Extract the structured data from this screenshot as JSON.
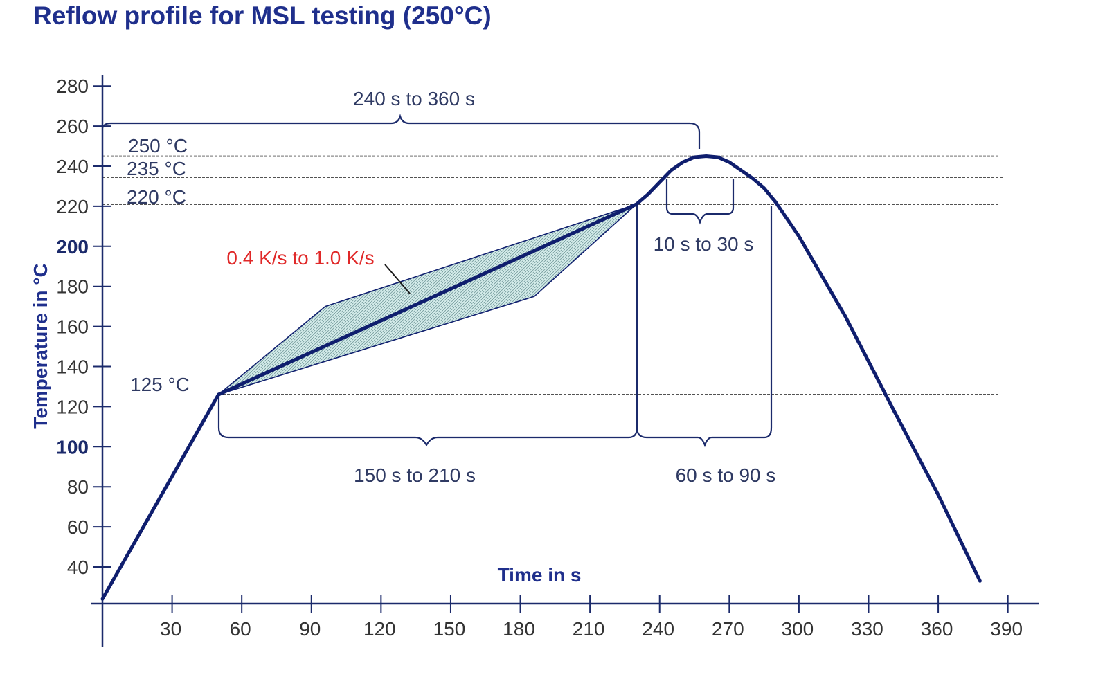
{
  "title": "Reflow profile for MSL testing (250°C)",
  "colors": {
    "curve": "#0f1e6e",
    "axis": "#1b2a6b",
    "title": "#1f2f8c",
    "shade_fill": "#bfe3df",
    "annotation_red": "#e02828"
  },
  "chart_data": {
    "type": "line",
    "title": "Reflow profile for MSL testing (250°C)",
    "xlabel": "Time in s",
    "ylabel": "Temperature in °C",
    "xlim": [
      0,
      390
    ],
    "ylim": [
      20,
      280
    ],
    "x_ticks": [
      30,
      60,
      90,
      120,
      150,
      180,
      210,
      240,
      270,
      300,
      330,
      360,
      390
    ],
    "y_ticks": [
      {
        "value": 280,
        "label": "280",
        "bold": false
      },
      {
        "value": 260,
        "label": "260",
        "bold": false
      },
      {
        "value": 240,
        "label": "240",
        "bold": false
      },
      {
        "value": 220,
        "label": "220",
        "bold": false
      },
      {
        "value": 200,
        "label": "200",
        "bold": true
      },
      {
        "value": 180,
        "label": "180",
        "bold": false
      },
      {
        "value": 160,
        "label": "160",
        "bold": false
      },
      {
        "value": 140,
        "label": "140",
        "bold": false
      },
      {
        "value": 120,
        "label": "120",
        "bold": false
      },
      {
        "value": 100,
        "label": "100",
        "bold": true
      },
      {
        "value": 80,
        "label": "80",
        "bold": false
      },
      {
        "value": 60,
        "label": "60",
        "bold": false
      },
      {
        "value": 40,
        "label": "40",
        "bold": false
      }
    ],
    "series": [
      {
        "name": "Reflow profile",
        "x": [
          0,
          50,
          230,
          235,
          240,
          245,
          250,
          255,
          260,
          265,
          270,
          275,
          280,
          285,
          290,
          300,
          320,
          340,
          360,
          378
        ],
        "y": [
          24,
          126,
          221,
          226,
          232,
          238,
          242,
          244.5,
          245,
          244.5,
          242,
          238,
          234,
          229,
          222,
          205,
          165,
          120,
          76,
          33
        ]
      }
    ],
    "ramp_band": {
      "upper": {
        "x": [
          50,
          96,
          230
        ],
        "y": [
          126,
          170,
          221
        ]
      },
      "lower": {
        "x": [
          50,
          186,
          230
        ],
        "y": [
          126,
          175,
          221
        ]
      }
    },
    "reference_lines": [
      {
        "temp": 245,
        "label": "250 °C"
      },
      {
        "temp": 234.5,
        "label": "235 °C"
      },
      {
        "temp": 221,
        "label": "220 °C"
      },
      {
        "temp": 126,
        "label": "125 °C"
      }
    ],
    "annotations": {
      "total_time": "240 s to 360 s",
      "peak_time": "10 s to 30 s",
      "ramp_rate": "0.4 K/s to 1.0 K/s",
      "preheat_time": "150 s to 210 s",
      "above_liquidus_time": "60 s to 90 s"
    }
  }
}
